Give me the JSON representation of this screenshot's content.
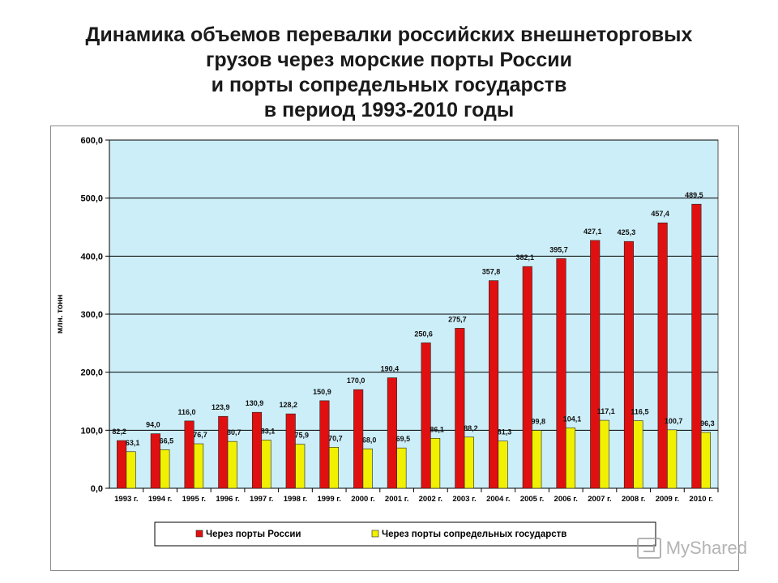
{
  "title_lines": [
    "Динамика объемов перевалки российских внешнеторговых",
    "грузов через морские порты России",
    "и порты сопредельных государств",
    "в период 1993-2010 годы"
  ],
  "colors": {
    "plot_bg": "#cceef8",
    "series1": "#e01010",
    "series2": "#f0f000",
    "grid": "#000000"
  },
  "chart_data": {
    "type": "bar",
    "categories": [
      "1993 г.",
      "1994 г.",
      "1995 г.",
      "1996 г.",
      "1997 г.",
      "1998 г.",
      "1999 г.",
      "2000 г.",
      "2001 г.",
      "2002 г.",
      "2003 г.",
      "2004 г.",
      "2005 г.",
      "2006 г.",
      "2007 г.",
      "2008 г.",
      "2009 г.",
      "2010 г."
    ],
    "series": [
      {
        "name": "Через порты России",
        "values": [
          82.2,
          94.0,
          116.0,
          123.9,
          130.9,
          128.2,
          150.9,
          170.0,
          190.4,
          250.6,
          275.7,
          357.8,
          382.1,
          395.7,
          427.1,
          425.3,
          457.4,
          489.5
        ],
        "labels": [
          "82,2",
          "94,0",
          "116,0",
          "123,9",
          "130,9",
          "128,2",
          "150,9",
          "170,0",
          "190,4",
          "250,6",
          "275,7",
          "357,8",
          "382,1",
          "395,7",
          "427,1",
          "425,3",
          "457,4",
          "489,5"
        ]
      },
      {
        "name": "Через порты сопредельных государств",
        "values": [
          63.1,
          66.5,
          76.7,
          80.7,
          83.1,
          75.9,
          70.7,
          68.0,
          69.5,
          86.1,
          88.2,
          81.3,
          99.8,
          104.1,
          117.1,
          116.5,
          100.7,
          96.3
        ],
        "labels": [
          "63,1",
          "66,5",
          "76,7",
          "80,7",
          "83,1",
          "75,9",
          "70,7",
          "68,0",
          "69,5",
          "86,1",
          "88,2",
          "81,3",
          "99,8",
          "104,1",
          "117,1",
          "116,5",
          "100,7",
          "96,3"
        ]
      }
    ],
    "ylabel": "млн. тонн",
    "ylim": [
      0,
      600
    ],
    "yticks": [
      0,
      100,
      200,
      300,
      400,
      500,
      600
    ],
    "ytick_labels": [
      "0,0",
      "100,0",
      "200,0",
      "300,0",
      "400,0",
      "500,0",
      "600,0"
    ],
    "grid": true,
    "legend_position": "bottom"
  },
  "watermark": "MyShared"
}
